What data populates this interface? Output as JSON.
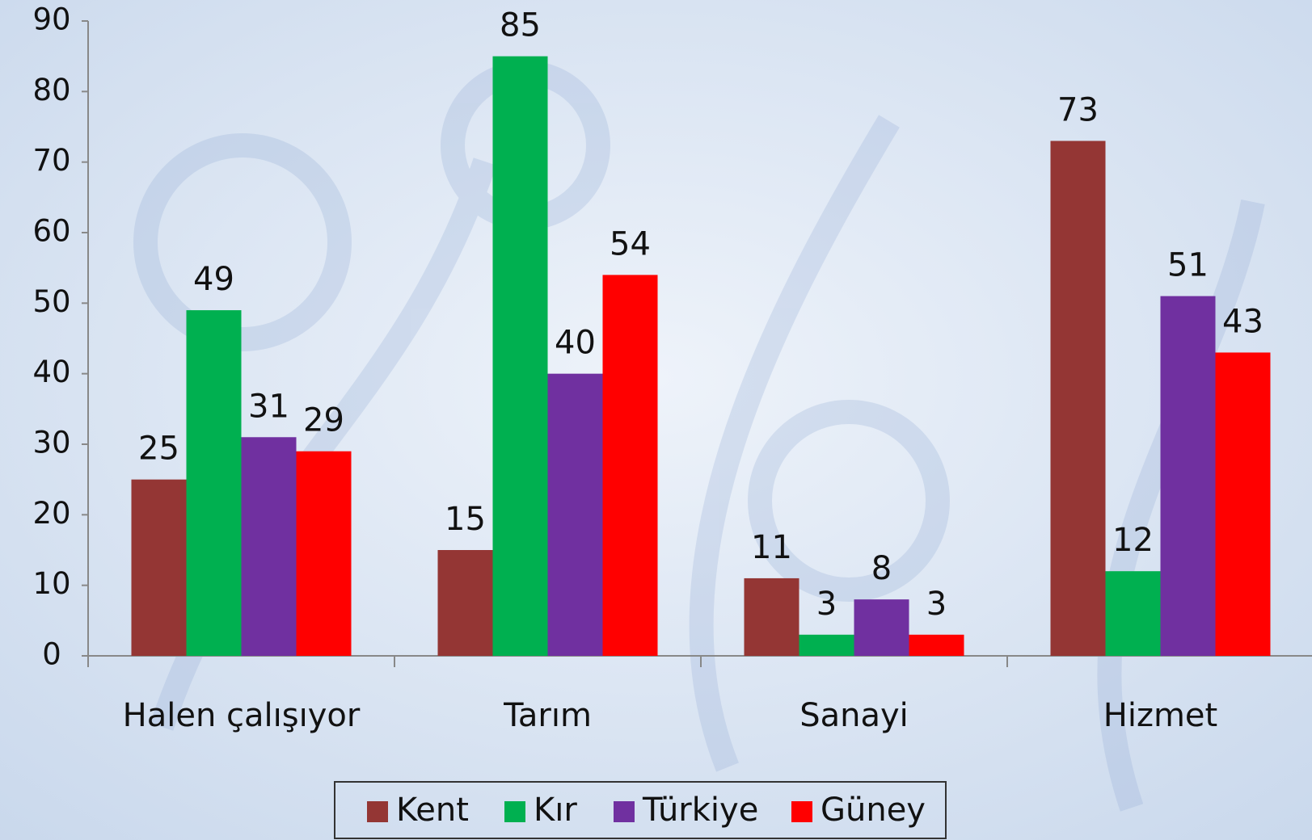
{
  "chart_data": {
    "type": "bar",
    "categories": [
      "Halen çalışıyor",
      "Tarım",
      "Sanayi",
      "Hizmet"
    ],
    "series": [
      {
        "name": "Kent",
        "color": "#943634",
        "values": [
          25,
          15,
          11,
          73
        ]
      },
      {
        "name": "Kır",
        "color": "#00b050",
        "values": [
          49,
          85,
          3,
          12
        ]
      },
      {
        "name": "Türkiye",
        "color": "#7030a0",
        "values": [
          31,
          40,
          8,
          51
        ]
      },
      {
        "name": "Güney",
        "color": "#ff0000",
        "values": [
          29,
          54,
          3,
          43
        ]
      }
    ],
    "ylim": [
      0,
      90
    ],
    "yticks": [
      0,
      10,
      20,
      30,
      40,
      50,
      60,
      70,
      80,
      90
    ],
    "grid": false,
    "legend": "bottom"
  }
}
